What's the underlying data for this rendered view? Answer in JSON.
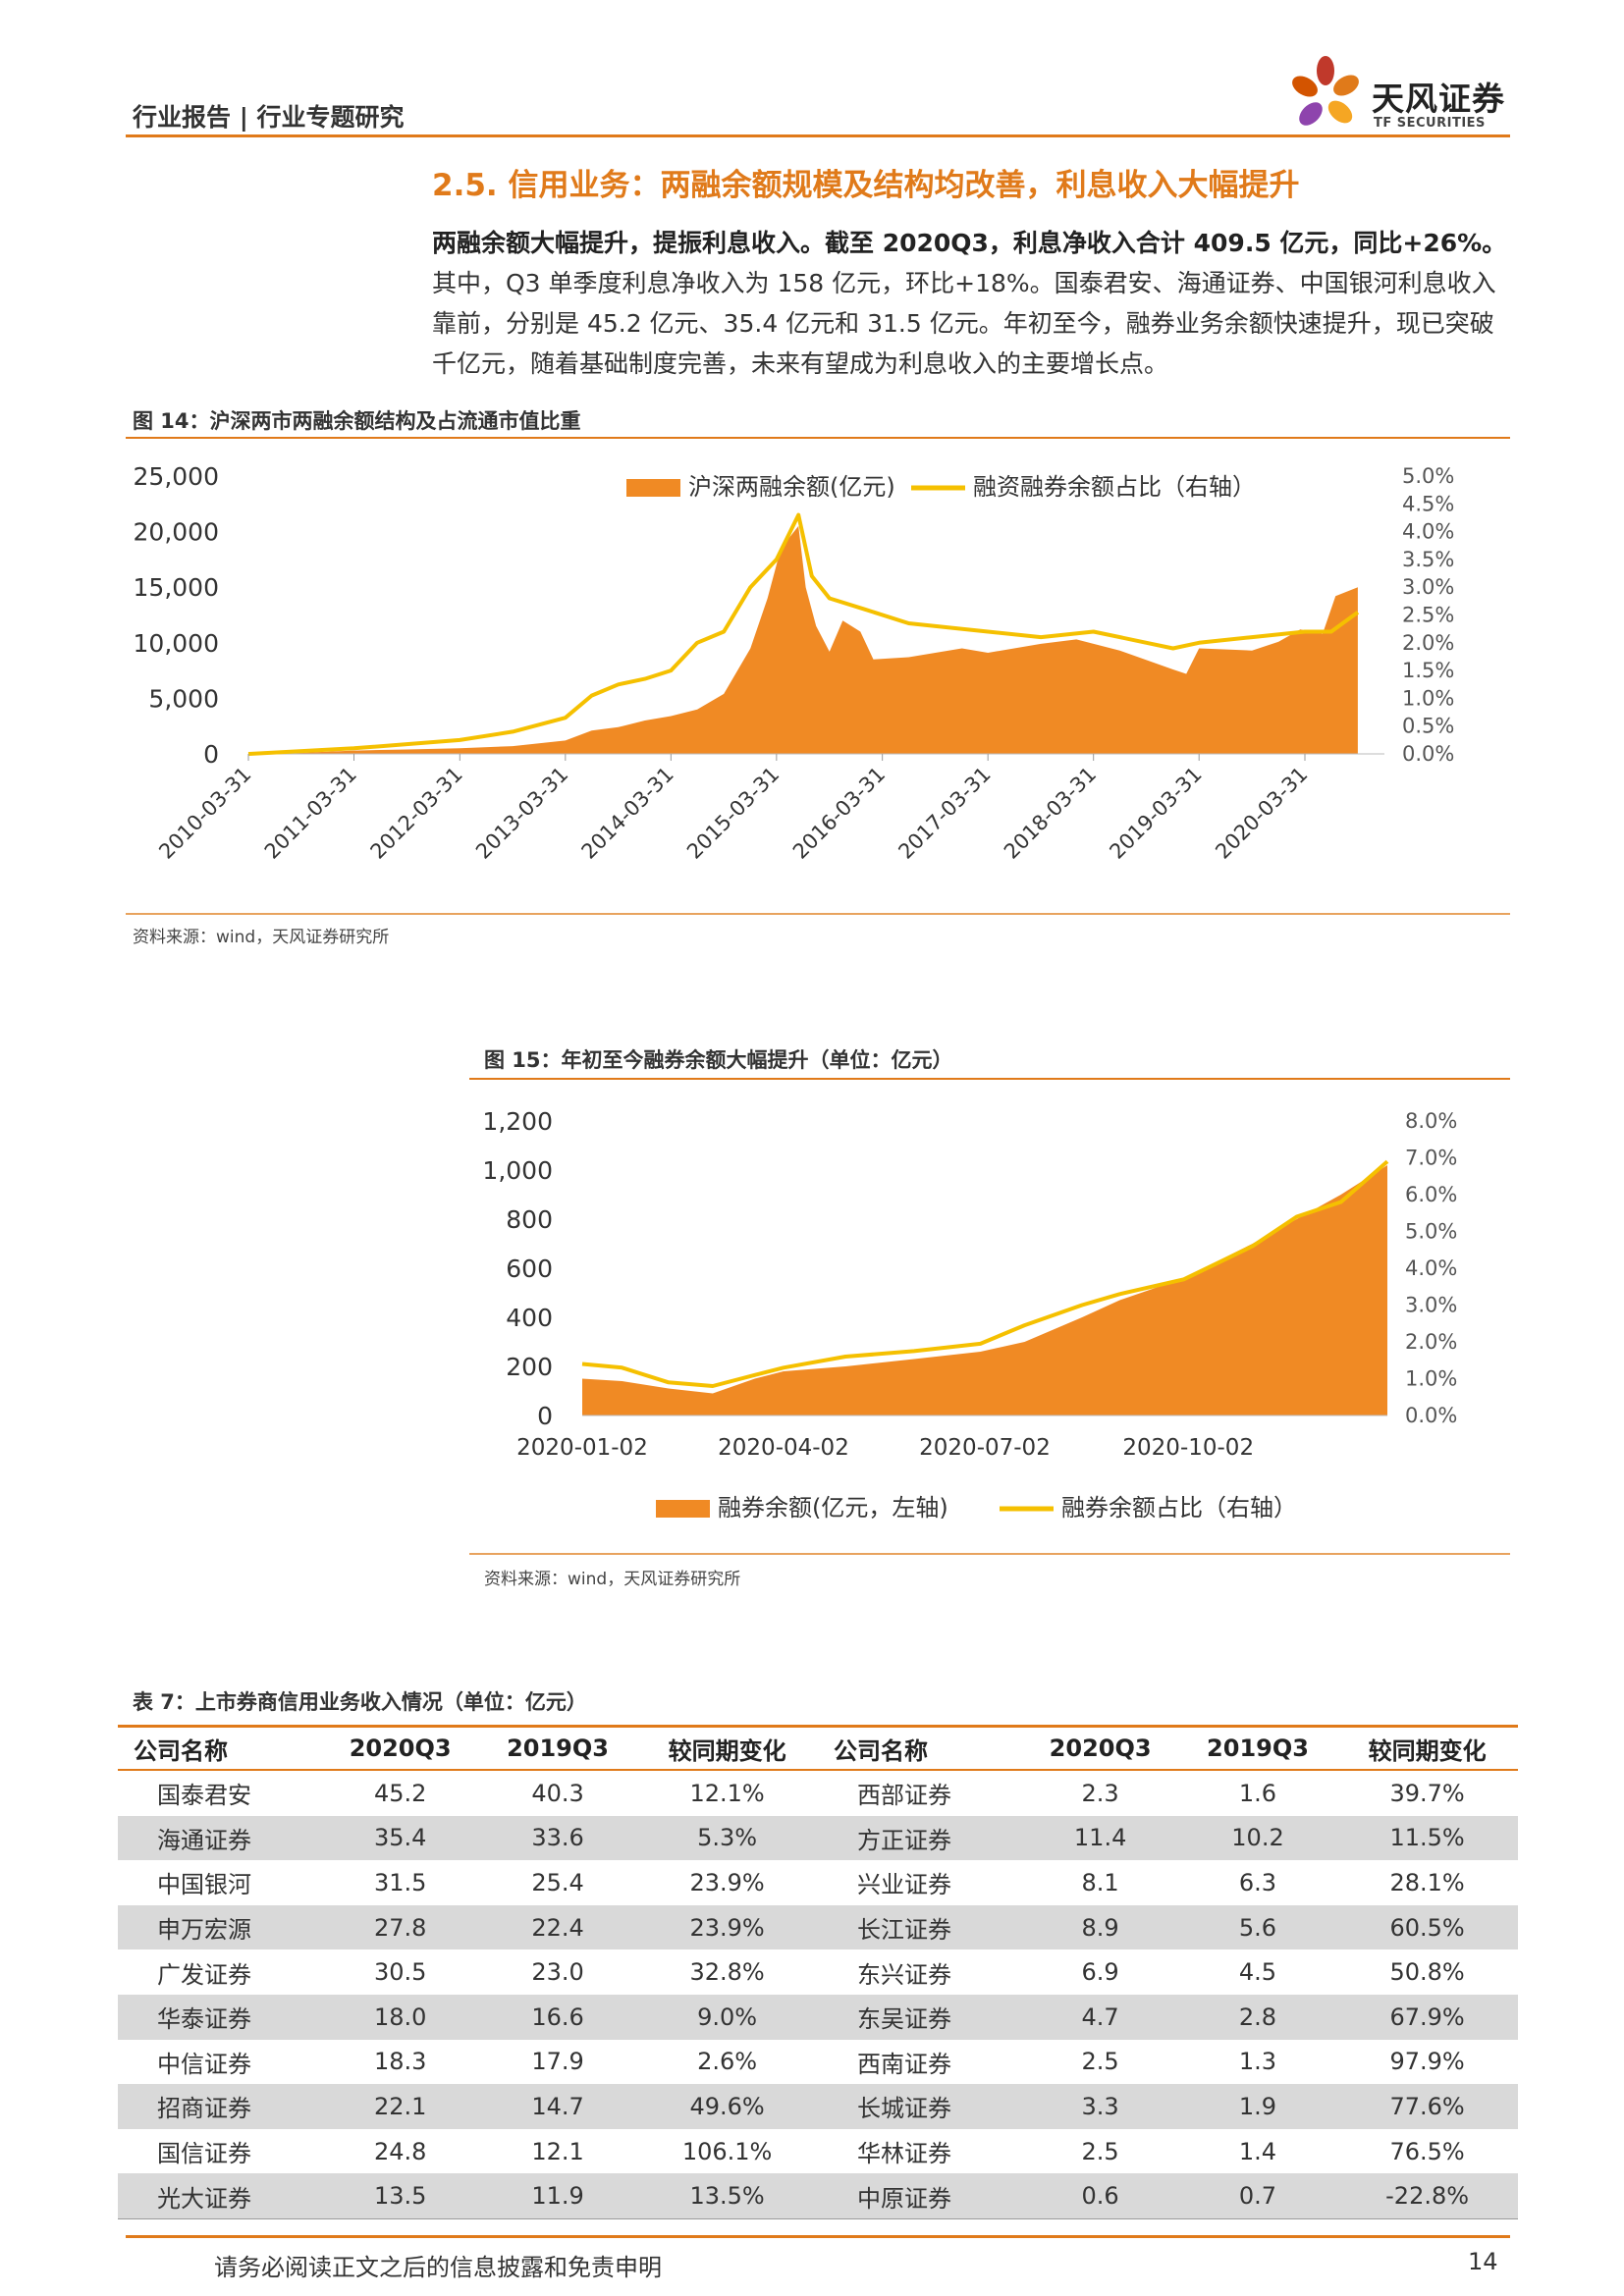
{
  "header": {
    "report_type": "行业报告 | 行业专题研究",
    "logo_cn": "天风证券",
    "logo_en": "TF SECURITIES"
  },
  "section": {
    "title": "2.5. 信用业务：两融余额规模及结构均改善，利息收入大幅提升",
    "lead": "两融余额大幅提升，提振利息收入。截至 2020Q3，利息净收入合计 409.5 亿元，同比+26%。",
    "body": "其中，Q3 单季度利息净收入为 158 亿元，环比+18%。国泰君安、海通证券、中国银河利息收入靠前，分别是 45.2 亿元、35.4 亿元和 31.5 亿元。年初至今，融券业务余额快速提升，现已突破千亿元，随着基础制度完善，未来有望成为利息收入的主要增长点。"
  },
  "figure14": {
    "title": "图 14：沪深两市两融余额结构及占流通市值比重",
    "source": "资料来源：wind，天风证券研究所"
  },
  "figure15": {
    "title": "图 15：年初至今融券余额大幅提升（单位：亿元）",
    "source": "资料来源：wind，天风证券研究所"
  },
  "chart_data": [
    {
      "type": "area",
      "title": "",
      "x": [
        "2010-03-31",
        "2011-03-31",
        "2012-03-31",
        "2013-03-31",
        "2014-03-31",
        "2015-03-31",
        "2016-03-31",
        "2017-03-31",
        "2018-03-31",
        "2019-03-31",
        "2020-03-31"
      ],
      "x_ticks": [
        "2010-03-31",
        "2011-03-31",
        "2012-03-31",
        "2013-03-31",
        "2014-03-31",
        "2015-03-31",
        "2016-03-31",
        "2017-03-31",
        "2018-03-31",
        "2019-03-31",
        "2020-03-31"
      ],
      "ylim": [
        0,
        25000
      ],
      "y_ticks": [
        "0",
        "5,000",
        "10,000",
        "15,000",
        "20,000",
        "25,000"
      ],
      "y2lim": [
        0,
        5.0
      ],
      "y2_ticks": [
        "0.0%",
        "0.5%",
        "1.0%",
        "1.5%",
        "2.0%",
        "2.5%",
        "3.0%",
        "3.5%",
        "4.0%",
        "4.5%",
        "5.0%"
      ],
      "series": [
        {
          "name": "沪深两融余额(亿元)",
          "axis": "left",
          "color": "#f08a24",
          "points": [
            [
              "2010-03-31",
              0
            ],
            [
              "2010-09-30",
              100
            ],
            [
              "2011-03-31",
              300
            ],
            [
              "2011-09-30",
              400
            ],
            [
              "2012-03-31",
              500
            ],
            [
              "2012-09-30",
              700
            ],
            [
              "2013-03-31",
              1200
            ],
            [
              "2013-06-30",
              2100
            ],
            [
              "2013-09-30",
              2400
            ],
            [
              "2013-12-31",
              3000
            ],
            [
              "2014-03-31",
              3400
            ],
            [
              "2014-06-30",
              4000
            ],
            [
              "2014-09-30",
              5400
            ],
            [
              "2014-12-31",
              9500
            ],
            [
              "2015-02-28",
              14000
            ],
            [
              "2015-04-15",
              18500
            ],
            [
              "2015-06-15",
              20500
            ],
            [
              "2015-07-10",
              15000
            ],
            [
              "2015-08-15",
              11500
            ],
            [
              "2015-09-30",
              9200
            ],
            [
              "2015-11-15",
              12000
            ],
            [
              "2016-01-15",
              11000
            ],
            [
              "2016-02-29",
              8500
            ],
            [
              "2016-06-30",
              8700
            ],
            [
              "2016-12-31",
              9500
            ],
            [
              "2017-03-31",
              9100
            ],
            [
              "2017-09-30",
              9900
            ],
            [
              "2018-01-31",
              10300
            ],
            [
              "2018-06-30",
              9300
            ],
            [
              "2018-12-31",
              7600
            ],
            [
              "2019-02-15",
              7200
            ],
            [
              "2019-03-31",
              9500
            ],
            [
              "2019-09-30",
              9300
            ],
            [
              "2019-12-31",
              10100
            ],
            [
              "2020-03-15",
              11200
            ],
            [
              "2020-05-31",
              10800
            ],
            [
              "2020-07-15",
              14200
            ],
            [
              "2020-09-30",
              15000
            ]
          ]
        },
        {
          "name": "融资融券余额占比（右轴）",
          "axis": "right",
          "color": "#f5c000",
          "points": [
            [
              "2010-03-31",
              0.0
            ],
            [
              "2011-03-31",
              0.1
            ],
            [
              "2012-03-31",
              0.25
            ],
            [
              "2012-09-30",
              0.4
            ],
            [
              "2013-03-31",
              0.65
            ],
            [
              "2013-06-30",
              1.05
            ],
            [
              "2013-09-30",
              1.25
            ],
            [
              "2013-12-31",
              1.35
            ],
            [
              "2014-03-31",
              1.5
            ],
            [
              "2014-06-30",
              2.0
            ],
            [
              "2014-09-30",
              2.2
            ],
            [
              "2014-12-31",
              3.0
            ],
            [
              "2015-03-31",
              3.5
            ],
            [
              "2015-06-15",
              4.3
            ],
            [
              "2015-07-31",
              3.2
            ],
            [
              "2015-09-30",
              2.8
            ],
            [
              "2016-01-31",
              2.6
            ],
            [
              "2016-06-30",
              2.35
            ],
            [
              "2017-03-31",
              2.2
            ],
            [
              "2017-09-30",
              2.1
            ],
            [
              "2018-03-31",
              2.2
            ],
            [
              "2018-09-30",
              2.0
            ],
            [
              "2018-12-31",
              1.9
            ],
            [
              "2019-03-31",
              2.0
            ],
            [
              "2019-09-30",
              2.1
            ],
            [
              "2020-03-31",
              2.2
            ],
            [
              "2020-06-30",
              2.2
            ],
            [
              "2020-09-30",
              2.55
            ]
          ]
        }
      ]
    },
    {
      "type": "area",
      "title": "",
      "x_ticks": [
        "2020-01-02",
        "2020-04-02",
        "2020-07-02",
        "2020-10-02"
      ],
      "ylim": [
        0,
        1200
      ],
      "y_ticks": [
        "0",
        "200",
        "400",
        "600",
        "800",
        "1,000",
        "1,200"
      ],
      "y2lim": [
        0,
        8.0
      ],
      "y2_ticks": [
        "0.0%",
        "1.0%",
        "2.0%",
        "3.0%",
        "4.0%",
        "5.0%",
        "6.0%",
        "7.0%",
        "8.0%"
      ],
      "series": [
        {
          "name": "融券余额(亿元，左轴)",
          "axis": "left",
          "color": "#f08a24",
          "points": [
            [
              "2020-01-02",
              150
            ],
            [
              "2020-01-20",
              140
            ],
            [
              "2020-02-10",
              110
            ],
            [
              "2020-03-01",
              90
            ],
            [
              "2020-03-20",
              150
            ],
            [
              "2020-04-02",
              180
            ],
            [
              "2020-04-30",
              200
            ],
            [
              "2020-05-31",
              230
            ],
            [
              "2020-06-30",
              260
            ],
            [
              "2020-07-20",
              300
            ],
            [
              "2020-08-15",
              400
            ],
            [
              "2020-09-01",
              470
            ],
            [
              "2020-09-30",
              560
            ],
            [
              "2020-10-31",
              700
            ],
            [
              "2020-11-20",
              800
            ],
            [
              "2020-12-10",
              900
            ],
            [
              "2020-12-31",
              1020
            ]
          ]
        },
        {
          "name": "融券余额占比（右轴）",
          "axis": "right",
          "color": "#f5c000",
          "points": [
            [
              "2020-01-02",
              1.4
            ],
            [
              "2020-01-20",
              1.3
            ],
            [
              "2020-02-10",
              0.9
            ],
            [
              "2020-03-01",
              0.8
            ],
            [
              "2020-03-20",
              1.1
            ],
            [
              "2020-04-02",
              1.3
            ],
            [
              "2020-04-30",
              1.6
            ],
            [
              "2020-05-31",
              1.75
            ],
            [
              "2020-06-30",
              1.95
            ],
            [
              "2020-07-20",
              2.45
            ],
            [
              "2020-08-15",
              3.0
            ],
            [
              "2020-09-01",
              3.3
            ],
            [
              "2020-09-30",
              3.7
            ],
            [
              "2020-10-31",
              4.6
            ],
            [
              "2020-11-20",
              5.4
            ],
            [
              "2020-12-10",
              5.8
            ],
            [
              "2020-12-31",
              6.9
            ]
          ]
        }
      ]
    }
  ],
  "table7": {
    "title": "表 7：上市券商信用业务收入情况（单位：亿元）",
    "headers": [
      "公司名称",
      "2020Q3",
      "2019Q3",
      "较同期变化",
      "公司名称",
      "2020Q3",
      "2019Q3",
      "较同期变化"
    ],
    "rows": [
      [
        "国泰君安",
        "45.2",
        "40.3",
        "12.1%",
        "西部证券",
        "2.3",
        "1.6",
        "39.7%"
      ],
      [
        "海通证券",
        "35.4",
        "33.6",
        "5.3%",
        "方正证券",
        "11.4",
        "10.2",
        "11.5%"
      ],
      [
        "中国银河",
        "31.5",
        "25.4",
        "23.9%",
        "兴业证券",
        "8.1",
        "6.3",
        "28.1%"
      ],
      [
        "申万宏源",
        "27.8",
        "22.4",
        "23.9%",
        "长江证券",
        "8.9",
        "5.6",
        "60.5%"
      ],
      [
        "广发证券",
        "30.5",
        "23.0",
        "32.8%",
        "东兴证券",
        "6.9",
        "4.5",
        "50.8%"
      ],
      [
        "华泰证券",
        "18.0",
        "16.6",
        "9.0%",
        "东吴证券",
        "4.7",
        "2.8",
        "67.9%"
      ],
      [
        "中信证券",
        "18.3",
        "17.9",
        "2.6%",
        "西南证券",
        "2.5",
        "1.3",
        "97.9%"
      ],
      [
        "招商证券",
        "22.1",
        "14.7",
        "49.6%",
        "长城证券",
        "3.3",
        "1.9",
        "77.6%"
      ],
      [
        "国信证券",
        "24.8",
        "12.1",
        "106.1%",
        "华林证券",
        "2.5",
        "1.4",
        "76.5%"
      ],
      [
        "光大证券",
        "13.5",
        "11.9",
        "13.5%",
        "中原证券",
        "0.6",
        "0.7",
        "-22.8%"
      ]
    ]
  },
  "footer": {
    "disclaimer": "请务必阅读正文之后的信息披露和免责申明",
    "page": "14"
  }
}
